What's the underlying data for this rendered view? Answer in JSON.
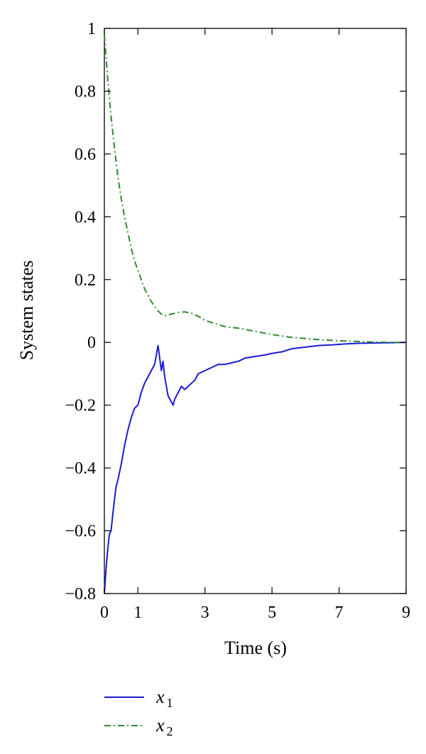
{
  "chart_data": {
    "type": "line",
    "title": "",
    "xlabel": "Time (s)",
    "ylabel": "System states",
    "xlim": [
      0,
      9
    ],
    "ylim": [
      -0.8,
      1
    ],
    "x_ticks": [
      0,
      1,
      3,
      5,
      7,
      9
    ],
    "x_tick_labels": [
      "0",
      "1",
      "3",
      "5",
      "7",
      "9"
    ],
    "y_ticks": [
      1,
      0.8,
      0.6,
      0.4,
      0.2,
      0,
      -0.2,
      -0.4,
      -0.6,
      -0.8
    ],
    "y_tick_labels": [
      "1",
      "0.8",
      "0.6",
      "0.4",
      "0.2",
      "0",
      "−0.2",
      "−0.4",
      "−0.6",
      "−0.8"
    ],
    "grid": false,
    "legend_position": "bottom-left, below plot",
    "series": [
      {
        "name": "x1",
        "legend_symbol": "x",
        "legend_subscript": "1",
        "color": "#1a1ad6",
        "dash": "solid",
        "x": [
          0,
          0.05,
          0.1,
          0.15,
          0.2,
          0.25,
          0.3,
          0.35,
          0.4,
          0.5,
          0.6,
          0.7,
          0.8,
          0.9,
          1.0,
          1.1,
          1.2,
          1.3,
          1.4,
          1.5,
          1.55,
          1.6,
          1.65,
          1.7,
          1.75,
          1.8,
          1.9,
          2.0,
          2.05,
          2.1,
          2.2,
          2.3,
          2.4,
          2.5,
          2.6,
          2.7,
          2.8,
          3.0,
          3.2,
          3.4,
          3.6,
          3.8,
          4.0,
          4.2,
          4.5,
          4.8,
          5.0,
          5.3,
          5.6,
          6.0,
          6.4,
          6.8,
          7.2,
          7.6,
          8.0,
          8.5,
          9.0
        ],
        "y": [
          -0.8,
          -0.72,
          -0.66,
          -0.61,
          -0.6,
          -0.55,
          -0.5,
          -0.46,
          -0.44,
          -0.39,
          -0.33,
          -0.28,
          -0.24,
          -0.21,
          -0.2,
          -0.16,
          -0.13,
          -0.11,
          -0.09,
          -0.07,
          -0.04,
          -0.01,
          -0.05,
          -0.09,
          -0.06,
          -0.11,
          -0.17,
          -0.19,
          -0.2,
          -0.18,
          -0.16,
          -0.14,
          -0.15,
          -0.14,
          -0.13,
          -0.12,
          -0.1,
          -0.09,
          -0.08,
          -0.07,
          -0.07,
          -0.065,
          -0.06,
          -0.05,
          -0.045,
          -0.04,
          -0.035,
          -0.03,
          -0.02,
          -0.015,
          -0.01,
          -0.008,
          -0.005,
          -0.003,
          -0.002,
          -0.001,
          0
        ]
      },
      {
        "name": "x2",
        "legend_symbol": "x",
        "legend_subscript": "2",
        "color": "#2e8b2e",
        "dash": "dash-dot",
        "x": [
          0,
          0.1,
          0.2,
          0.3,
          0.4,
          0.5,
          0.6,
          0.7,
          0.8,
          0.9,
          1.0,
          1.1,
          1.2,
          1.3,
          1.4,
          1.5,
          1.6,
          1.7,
          1.8,
          1.9,
          2.0,
          2.2,
          2.4,
          2.6,
          2.8,
          3.0,
          3.3,
          3.6,
          4.0,
          4.5,
          5.0,
          5.5,
          6.0,
          6.5,
          7.0,
          7.5,
          8.0,
          8.5,
          9.0
        ],
        "y": [
          0.98,
          0.84,
          0.72,
          0.62,
          0.53,
          0.46,
          0.4,
          0.35,
          0.3,
          0.26,
          0.23,
          0.2,
          0.17,
          0.15,
          0.13,
          0.115,
          0.1,
          0.09,
          0.085,
          0.087,
          0.09,
          0.095,
          0.097,
          0.093,
          0.083,
          0.07,
          0.06,
          0.05,
          0.045,
          0.035,
          0.025,
          0.017,
          0.012,
          0.008,
          0.005,
          0.003,
          0.001,
          0.0,
          0.0
        ]
      }
    ]
  }
}
